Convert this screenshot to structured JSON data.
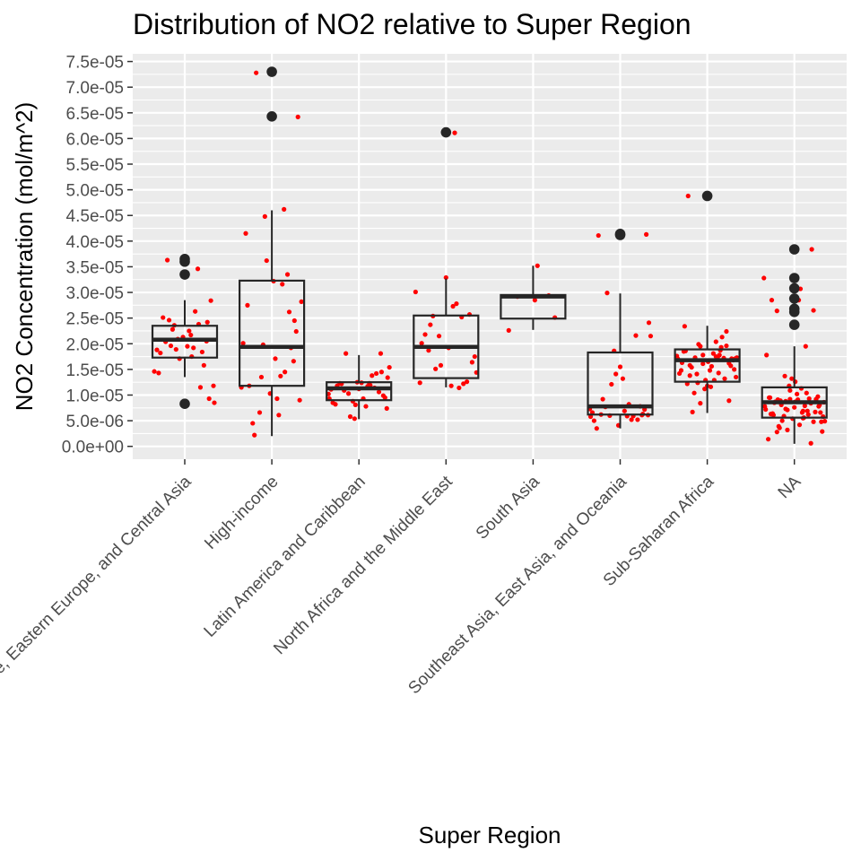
{
  "chart_data": {
    "type": "boxplot",
    "title": "Distribution of NO2 relative to Super Region",
    "xlabel": "Super Region",
    "ylabel": "NO2 Concentration (mol/m^2)",
    "ylim": [
      -2.5e-06,
      7.65e-05
    ],
    "yticks": [
      "0.0e+00",
      "5.0e-06",
      "1.0e-05",
      "1.5e-05",
      "2.0e-05",
      "2.5e-05",
      "3.0e-05",
      "3.5e-05",
      "4.0e-05",
      "4.5e-05",
      "5.0e-05",
      "5.5e-05",
      "6.0e-05",
      "6.5e-05",
      "7.0e-05",
      "7.5e-05"
    ],
    "ytick_values": [
      0,
      5e-06,
      1e-05,
      1.5e-05,
      2e-05,
      2.5e-05,
      3e-05,
      3.5e-05,
      4e-05,
      4.5e-05,
      5e-05,
      5.5e-05,
      6e-05,
      6.5e-05,
      7e-05,
      7.5e-05
    ],
    "grid": true,
    "colors": {
      "panel": "#ebebeb",
      "grid": "#ffffff",
      "box": "#262626",
      "jitter": "#ff0000"
    },
    "categories": [
      "Central Europe, Eastern Europe, and Central Asia",
      "High-income",
      "Latin America and Caribbean",
      "North Africa and the Middle East",
      "South Asia",
      "Southeast Asia, East Asia, and Oceania",
      "Sub-Saharan Africa",
      "NA"
    ],
    "boxes": [
      {
        "category": "Central Europe, Eastern Europe, and Central Asia",
        "q1": 1.73e-05,
        "median": 2.08e-05,
        "q3": 2.35e-05,
        "whisker_low": 1.35e-05,
        "whisker_high": 2.85e-05,
        "outliers": [
          8.3e-06,
          3.35e-05,
          3.6e-05,
          3.65e-05
        ]
      },
      {
        "category": "High-income",
        "q1": 1.18e-05,
        "median": 1.94e-05,
        "q3": 3.23e-05,
        "whisker_low": 2e-06,
        "whisker_high": 4.6e-05,
        "outliers": [
          6.43e-05,
          7.3e-05
        ]
      },
      {
        "category": "Latin America and Caribbean",
        "q1": 9e-06,
        "median": 1.13e-05,
        "q3": 1.25e-05,
        "whisker_low": 5.3e-06,
        "whisker_high": 1.78e-05,
        "outliers": []
      },
      {
        "category": "North Africa and the Middle East",
        "q1": 1.33e-05,
        "median": 1.94e-05,
        "q3": 2.55e-05,
        "whisker_low": 1.15e-05,
        "whisker_high": 3.27e-05,
        "outliers": [
          6.12e-05
        ]
      },
      {
        "category": "South Asia",
        "q1": 2.49e-05,
        "median": 2.92e-05,
        "q3": 2.95e-05,
        "whisker_low": 2.27e-05,
        "whisker_high": 3.52e-05,
        "outliers": []
      },
      {
        "category": "Southeast Asia, East Asia, and Oceania",
        "q1": 6.2e-06,
        "median": 7.8e-06,
        "q3": 1.83e-05,
        "whisker_low": 3.5e-06,
        "whisker_high": 2.98e-05,
        "outliers": [
          4.12e-05,
          4.14e-05
        ]
      },
      {
        "category": "Sub-Saharan Africa",
        "q1": 1.26e-05,
        "median": 1.68e-05,
        "q3": 1.89e-05,
        "whisker_low": 6.5e-06,
        "whisker_high": 2.35e-05,
        "outliers": [
          4.88e-05
        ]
      },
      {
        "category": "NA",
        "q1": 5.6e-06,
        "median": 8.6e-06,
        "q3": 1.15e-05,
        "whisker_low": 5e-07,
        "whisker_high": 1.95e-05,
        "outliers": [
          2.37e-05,
          2.62e-05,
          2.68e-05,
          2.88e-05,
          3.08e-05,
          3.28e-05,
          3.84e-05
        ]
      }
    ],
    "jitter_points": [
      {
        "category": "Central Europe, Eastern Europe, and Central Asia",
        "offsets": [
          -0.35,
          -0.28,
          -0.22,
          -0.18,
          -0.14,
          -0.1,
          -0.06,
          -0.02,
          0.03,
          0.07,
          0.12,
          0.16,
          0.2,
          0.25,
          0.3,
          0.34,
          -0.3,
          -0.2,
          0.1,
          0.22,
          -0.12,
          0.05,
          0.18,
          -0.25,
          0.28,
          0.0,
          -0.08,
          0.15,
          -0.32,
          0.33,
          0.08,
          -0.16,
          0.26
        ],
        "values": [
          1.46e-05,
          1.82e-05,
          2.04e-05,
          2.46e-05,
          2.28e-05,
          1.89e-05,
          1.71e-05,
          2.13e-05,
          1.95e-05,
          2.17e-05,
          2.63e-05,
          2.38e-05,
          1.84e-05,
          2.05e-05,
          2.84e-05,
          8.5e-06,
          1.43e-05,
          3.63e-05,
          1.92e-05,
          1.58e-05,
          2.36e-05,
          2.25e-05,
          1.15e-05,
          2.51e-05,
          9.3e-06,
          3.32e-05,
          2.09e-05,
          3.46e-05,
          1.88e-05,
          1.18e-05,
          1.75e-05,
          1.96e-05,
          2.42e-05
        ]
      },
      {
        "category": "High-income",
        "offsets": [
          -0.35,
          -0.3,
          -0.26,
          -0.22,
          -0.18,
          -0.14,
          -0.1,
          -0.06,
          -0.02,
          0.02,
          0.06,
          0.1,
          0.14,
          0.18,
          0.22,
          0.26,
          0.3,
          0.34,
          -0.33,
          -0.28,
          0.15,
          0.2,
          0.25,
          -0.12,
          0.08,
          0.32,
          -0.2,
          0.28,
          0.12,
          -0.08,
          0.04
        ],
        "values": [
          1.15e-05,
          4.15e-05,
          1.18e-05,
          4.5e-06,
          7.28e-05,
          6.6e-06,
          1.98e-05,
          3.62e-05,
          1.03e-05,
          3.22e-05,
          9.3e-06,
          1.37e-05,
          4.62e-05,
          3.35e-05,
          1.92e-05,
          2.45e-05,
          6.42e-05,
          2.82e-05,
          2.01e-05,
          2.75e-05,
          1.45e-05,
          2.62e-05,
          1.66e-05,
          1.35e-05,
          6.1e-06,
          9e-06,
          2.2e-06,
          2.24e-05,
          3.16e-05,
          4.48e-05,
          1.71e-05
        ]
      },
      {
        "category": "Latin America and Caribbean",
        "offsets": [
          -0.35,
          -0.3,
          -0.25,
          -0.2,
          -0.15,
          -0.1,
          -0.05,
          0.0,
          0.05,
          0.1,
          0.15,
          0.2,
          0.25,
          0.3,
          0.35,
          -0.32,
          -0.22,
          -0.12,
          -0.02,
          0.08,
          0.18,
          0.28,
          0.33,
          -0.27,
          -0.17,
          -0.07,
          0.03,
          0.13,
          0.23,
          0.32,
          -0.34,
          0.26,
          -0.04,
          0.12
        ],
        "values": [
          1.02e-05,
          8.5e-06,
          1.18e-05,
          1.22e-05,
          1.81e-05,
          5.8e-06,
          5.4e-06,
          1.12e-05,
          9.3e-06,
          1.17e-05,
          1.38e-05,
          1.42e-05,
          1.81e-05,
          9.5e-06,
          1.54e-05,
          1.11e-05,
          1.23e-05,
          1.03e-05,
          1.25e-05,
          7.8e-06,
          1.14e-05,
          9.9e-06,
          1.34e-05,
          8.2e-06,
          1.09e-05,
          8.8e-06,
          1.24e-05,
          1.19e-05,
          1.06e-05,
          7.4e-06,
          9.3e-06,
          1.45e-05,
          8.1e-06,
          1.23e-05
        ]
      },
      {
        "category": "North Africa and the Middle East",
        "offsets": [
          -0.35,
          -0.3,
          -0.24,
          -0.18,
          -0.12,
          -0.06,
          0.0,
          0.06,
          0.12,
          0.18,
          0.24,
          0.3,
          0.35,
          -0.28,
          -0.15,
          0.03,
          0.15,
          0.27,
          -0.08,
          0.1,
          0.2,
          -0.2,
          0.33,
          0.08
        ],
        "values": [
          3.01e-05,
          1.24e-05,
          2.18e-05,
          2.37e-05,
          1.51e-05,
          1.58e-05,
          3.29e-05,
          1.18e-05,
          2.78e-05,
          2.52e-05,
          1.26e-05,
          1.64e-05,
          1.44e-05,
          2.01e-05,
          2.54e-05,
          1.92e-05,
          1.14e-05,
          2.57e-05,
          2.15e-05,
          6.11e-05,
          1.22e-05,
          1.87e-05,
          1.75e-05,
          2.73e-05
        ]
      },
      {
        "category": "South Asia",
        "offsets": [
          -0.28,
          -0.18,
          0.05,
          0.25,
          0.02,
          0.18
        ],
        "values": [
          2.26e-05,
          2.92e-05,
          3.52e-05,
          2.51e-05,
          2.85e-05,
          2.94e-05
        ]
      },
      {
        "category": "Southeast Asia, East Asia, and Oceania",
        "offsets": [
          -0.35,
          -0.3,
          -0.25,
          -0.2,
          -0.15,
          -0.1,
          -0.05,
          0.0,
          0.05,
          0.1,
          0.15,
          0.2,
          0.25,
          0.3,
          0.35,
          -0.32,
          -0.22,
          -0.12,
          -0.02,
          0.08,
          0.18,
          0.28,
          0.33,
          -0.27,
          -0.17,
          -0.07,
          0.03,
          0.13,
          0.23,
          0.32,
          -0.34,
          0.26
        ],
        "values": [
          7.3e-06,
          5e-06,
          4.11e-05,
          9.2e-06,
          2.99e-05,
          1.21e-05,
          1.41e-05,
          1.55e-05,
          6.9e-06,
          8.2e-06,
          5.9e-06,
          5.2e-06,
          6.1e-06,
          4.13e-05,
          2.15e-05,
          6.6e-06,
          6.2e-06,
          6e-06,
          4.1e-06,
          5.9e-06,
          2.16e-05,
          7.2e-06,
          2.41e-05,
          3.5e-06,
          7.7e-06,
          1.86e-05,
          1.32e-05,
          5.2e-06,
          7.8e-06,
          6.1e-06,
          5.8e-06,
          6.3e-06
        ]
      },
      {
        "category": "Sub-Saharan Africa",
        "offsets": [
          -0.35,
          -0.32,
          -0.29,
          -0.26,
          -0.23,
          -0.2,
          -0.17,
          -0.14,
          -0.11,
          -0.08,
          -0.05,
          -0.02,
          0.01,
          0.04,
          0.07,
          0.1,
          0.13,
          0.16,
          0.19,
          0.22,
          0.25,
          0.28,
          0.31,
          0.34,
          -0.34,
          -0.3,
          -0.25,
          -0.2,
          -0.15,
          -0.1,
          -0.05,
          0.0,
          0.05,
          0.1,
          0.15,
          0.2,
          0.25,
          0.3,
          0.33,
          -0.27,
          -0.18,
          -0.08,
          0.03,
          0.12,
          0.22,
          0.32,
          -0.22,
          0.08,
          0.17,
          -0.12,
          0.27,
          -0.03,
          0.14
        ],
        "values": [
          1.76e-05,
          1.42e-05,
          1.63e-05,
          2.34e-05,
          1.22e-05,
          1.58e-05,
          6.7e-06,
          1.73e-05,
          1.24e-05,
          1.95e-05,
          1.78e-05,
          1.29e-05,
          1.65e-05,
          1.16e-05,
          1.81e-05,
          2.04e-05,
          1.43e-05,
          1.93e-05,
          1.72e-05,
          2.24e-05,
          1.62e-05,
          1.71e-05,
          1.5e-05,
          1.73e-05,
          1.71e-05,
          1.48e-05,
          1.86e-05,
          1.38e-05,
          1.04e-05,
          1.99e-05,
          1.61e-05,
          1.18e-05,
          1.56e-05,
          1.75e-05,
          1.87e-05,
          1.32e-05,
          8.9e-06,
          1.68e-05,
          1.35e-05,
          1.85e-05,
          1.54e-05,
          8.4e-06,
          1.48e-05,
          1.74e-05,
          1.96e-05,
          1.71e-05,
          4.88e-05,
          1.29e-05,
          2.13e-05,
          1.41e-05,
          1.57e-05,
          1.12e-05,
          1.78e-05
        ]
      },
      {
        "category": "NA",
        "offsets": [
          -0.35,
          -0.32,
          -0.29,
          -0.26,
          -0.23,
          -0.2,
          -0.17,
          -0.14,
          -0.11,
          -0.08,
          -0.05,
          -0.02,
          0.01,
          0.04,
          0.07,
          0.1,
          0.13,
          0.16,
          0.19,
          0.22,
          0.25,
          0.28,
          0.31,
          0.34,
          -0.34,
          -0.3,
          -0.25,
          -0.2,
          -0.15,
          -0.1,
          -0.05,
          0.0,
          0.05,
          0.1,
          0.15,
          0.2,
          0.25,
          0.3,
          0.33,
          -0.27,
          -0.18,
          -0.08,
          0.03,
          0.12,
          0.22,
          0.32,
          -0.22,
          0.08,
          0.17,
          -0.12,
          0.27,
          -0.03,
          0.14,
          -0.33,
          -0.24,
          -0.16,
          -0.06,
          0.06,
          0.19,
          0.29,
          -0.28,
          -0.1,
          0.01,
          0.11,
          0.24,
          0.35,
          -0.19,
          0.09
        ],
        "values": [
          3.28e-05,
          1.78e-05,
          9.5e-06,
          2.85e-05,
          8.5e-06,
          2.64e-05,
          3.6e-06,
          5e-06,
          1.37e-05,
          7.1e-06,
          1.09e-05,
          5.4e-06,
          1.26e-05,
          9.1e-06,
          3.07e-05,
          6.9e-06,
          1.95e-05,
          6.2e-06,
          8.4e-06,
          2.65e-05,
          9.2e-06,
          7.8e-06,
          4.8e-06,
          8.6e-06,
          7.8e-06,
          1.4e-06,
          6.4e-06,
          2.8e-06,
          8.1e-06,
          8.8e-06,
          9.2e-06,
          7.6e-06,
          2.85e-05,
          5.5e-06,
          6.9e-06,
          3.84e-05,
          9.1e-06,
          6.6e-06,
          5.8e-06,
          6.3e-06,
          3.9e-06,
          3.2e-06,
          1.02e-05,
          7.9e-06,
          4.8e-06,
          2.9e-06,
          8.7e-06,
          1.13e-05,
          9.3e-06,
          5.9e-06,
          9.7e-06,
          1.32e-05,
          1.04e-05,
          7.2e-06,
          6.1e-06,
          8.9e-06,
          1.18e-05,
          4.2e-06,
          6e-07,
          8.1e-06,
          9.5e-06,
          7.3e-06,
          8.7e-06,
          5.6e-06,
          6.7e-06,
          4.9e-06,
          9.1e-06,
          6.6e-06
        ]
      }
    ]
  }
}
